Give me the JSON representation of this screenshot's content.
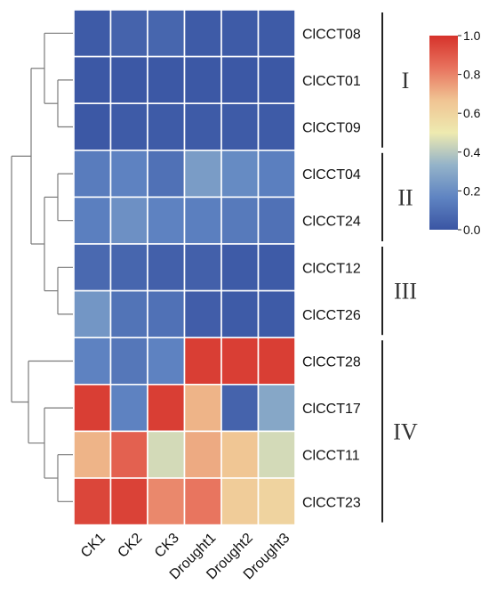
{
  "chart_data": {
    "type": "heatmap",
    "columns": [
      "CK1",
      "CK2",
      "CK3",
      "Drought1",
      "Drought2",
      "Drought3"
    ],
    "rows": [
      "ClCCT08",
      "ClCCT01",
      "ClCCT09",
      "ClCCT04",
      "ClCCT24",
      "ClCCT12",
      "ClCCT26",
      "ClCCT28",
      "ClCCT17",
      "ClCCT11",
      "ClCCT23"
    ],
    "values": [
      [
        0.02,
        0.05,
        0.06,
        0.02,
        0.02,
        0.02
      ],
      [
        0.01,
        0.01,
        0.01,
        0.01,
        0.01,
        0.01
      ],
      [
        0.01,
        0.02,
        0.02,
        0.02,
        0.02,
        0.02
      ],
      [
        0.14,
        0.16,
        0.1,
        0.25,
        0.19,
        0.15
      ],
      [
        0.15,
        0.21,
        0.16,
        0.15,
        0.13,
        0.1
      ],
      [
        0.07,
        0.06,
        0.04,
        0.04,
        0.02,
        0.02
      ],
      [
        0.23,
        0.11,
        0.1,
        0.03,
        0.02,
        0.02
      ],
      [
        0.16,
        0.12,
        0.16,
        0.97,
        0.97,
        0.97
      ],
      [
        0.97,
        0.16,
        0.97,
        0.7,
        0.05,
        0.29
      ],
      [
        0.7,
        0.88,
        0.45,
        0.72,
        0.66,
        0.45
      ],
      [
        0.95,
        0.96,
        0.79,
        0.83,
        0.63,
        0.6
      ]
    ],
    "clusters": [
      {
        "label": "I",
        "rows": [
          "ClCCT08",
          "ClCCT01",
          "ClCCT09"
        ]
      },
      {
        "label": "II",
        "rows": [
          "ClCCT04",
          "ClCCT24"
        ]
      },
      {
        "label": "III",
        "rows": [
          "ClCCT12",
          "ClCCT26"
        ]
      },
      {
        "label": "IV",
        "rows": [
          "ClCCT28",
          "ClCCT17",
          "ClCCT11",
          "ClCCT23"
        ]
      }
    ],
    "colorbar": {
      "range": [
        0.0,
        1.0
      ],
      "ticks": [
        "0.0",
        "0.2",
        "0.4",
        "0.6",
        "0.8",
        "1.0"
      ],
      "colormap": [
        "#3a55a3",
        "#5f84c2",
        "#94b3c9",
        "#eeeab0",
        "#f0c493",
        "#e8735e",
        "#d6322b"
      ]
    },
    "grid": false,
    "legend": "top-right colorbar"
  }
}
